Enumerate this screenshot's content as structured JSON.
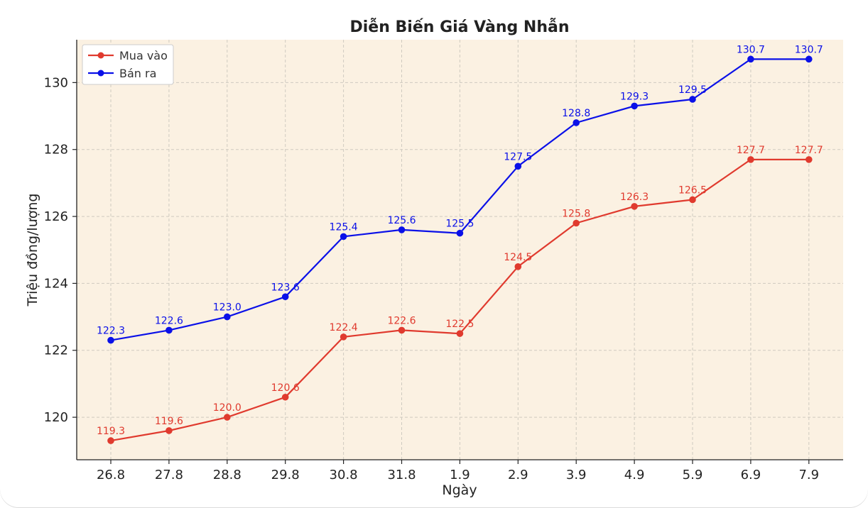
{
  "chart_data": {
    "type": "line",
    "title": "Diễn Biến Giá Vàng Nhẫn",
    "xlabel": "Ngày",
    "ylabel": "Triệu đồng/lượng",
    "categories": [
      "26.8",
      "27.8",
      "28.8",
      "29.8",
      "30.8",
      "31.8",
      "1.9",
      "2.9",
      "3.9",
      "4.9",
      "5.9",
      "6.9",
      "7.9"
    ],
    "series": [
      {
        "name": "Mua vào",
        "color": "#e03a2e",
        "values": [
          119.3,
          119.6,
          120.0,
          120.6,
          122.4,
          122.6,
          122.5,
          124.5,
          125.8,
          126.3,
          126.5,
          127.7,
          127.7
        ],
        "labels": [
          "119.3",
          "119.6",
          "120.0",
          "120.6",
          "122.4",
          "122.6",
          "122.5",
          "124.5",
          "125.8",
          "126.3",
          "126.5",
          "127.7",
          "127.7"
        ]
      },
      {
        "name": "Bán ra",
        "color": "#0a10e8",
        "values": [
          122.3,
          122.6,
          123.0,
          123.6,
          125.4,
          125.6,
          125.5,
          127.5,
          128.8,
          129.3,
          129.5,
          130.7,
          130.7
        ],
        "labels": [
          "122.3",
          "122.6",
          "123.0",
          "123.6",
          "125.4",
          "125.6",
          "125.5",
          "127.5",
          "128.8",
          "129.3",
          "129.5",
          "130.7",
          "130.7"
        ]
      }
    ],
    "ylim": [
      118.73,
      131.28
    ],
    "yticks": [
      120,
      122,
      124,
      126,
      128,
      130
    ],
    "ytick_labels": [
      "120",
      "122",
      "124",
      "126",
      "128",
      "130"
    ],
    "grid": true,
    "grid_style": "dashed",
    "legend_position": "top-left",
    "plot_background": "#fbf1e2"
  }
}
